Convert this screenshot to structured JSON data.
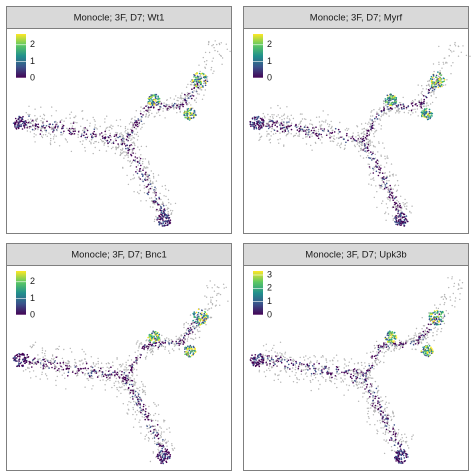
{
  "chart_data": [
    {
      "type": "scatter",
      "title": "Monocle; 3F, D7; Wt1",
      "colorbar": {
        "lim": [
          0,
          2.65
        ],
        "ticks": [
          0,
          1,
          2
        ]
      }
    },
    {
      "type": "scatter",
      "title": "Monocle; 3F, D7; Myrf",
      "colorbar": {
        "lim": [
          0,
          2.65
        ],
        "ticks": [
          0,
          1,
          2
        ]
      }
    },
    {
      "type": "scatter",
      "title": "Monocle; 3F, D7; Bnc1",
      "colorbar": {
        "lim": [
          0,
          2.65
        ],
        "ticks": [
          0,
          1,
          2
        ]
      }
    },
    {
      "type": "scatter",
      "title": "Monocle; 3F, D7; Upk3b",
      "colorbar": {
        "lim": [
          0,
          3.3
        ],
        "ticks": [
          0,
          1,
          2,
          3
        ]
      }
    }
  ]
}
